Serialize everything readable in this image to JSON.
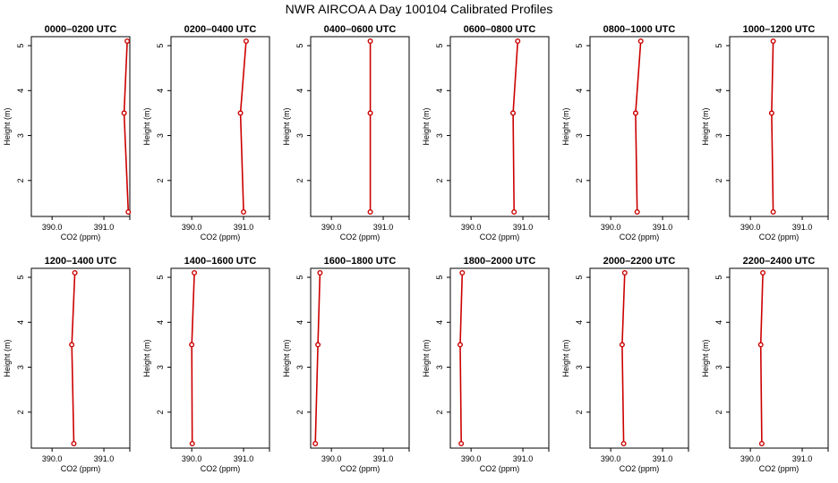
{
  "title": "NWR AIRCOA A  Day 100104  Calibrated Profiles",
  "colors": {
    "line": "#cc0000",
    "point": "#cc0000",
    "frame": "#000000"
  },
  "chart_data": {
    "type": "line",
    "xlabel": "CO2 (ppm)",
    "ylabel": "Height (m)",
    "xlim": [
      389.6,
      391.5
    ],
    "ylim": [
      1.2,
      5.2
    ],
    "xticks": [
      "390.0",
      "391.0"
    ],
    "yticks": [
      "2",
      "3",
      "4",
      "5"
    ],
    "grid": false,
    "panels": [
      {
        "title": "0000–0200 UTC",
        "points": [
          {
            "x": 391.45,
            "y": 5.1
          },
          {
            "x": 391.39,
            "y": 3.5
          },
          {
            "x": 391.47,
            "y": 1.3
          }
        ]
      },
      {
        "title": "0200–0400 UTC",
        "points": [
          {
            "x": 391.05,
            "y": 5.1
          },
          {
            "x": 390.94,
            "y": 3.5
          },
          {
            "x": 391.0,
            "y": 1.3
          }
        ]
      },
      {
        "title": "0400–0600 UTC",
        "points": [
          {
            "x": 390.75,
            "y": 5.1
          },
          {
            "x": 390.75,
            "y": 3.5
          },
          {
            "x": 390.75,
            "y": 1.3
          }
        ]
      },
      {
        "title": "0600–0800 UTC",
        "points": [
          {
            "x": 390.9,
            "y": 5.1
          },
          {
            "x": 390.81,
            "y": 3.5
          },
          {
            "x": 390.83,
            "y": 1.3
          }
        ]
      },
      {
        "title": "0800–1000 UTC",
        "points": [
          {
            "x": 390.58,
            "y": 5.1
          },
          {
            "x": 390.48,
            "y": 3.5
          },
          {
            "x": 390.51,
            "y": 1.3
          }
        ]
      },
      {
        "title": "1000–1200 UTC",
        "points": [
          {
            "x": 390.44,
            "y": 5.1
          },
          {
            "x": 390.41,
            "y": 3.5
          },
          {
            "x": 390.44,
            "y": 1.3
          }
        ]
      },
      {
        "title": "1200–1400 UTC",
        "points": [
          {
            "x": 390.44,
            "y": 5.1
          },
          {
            "x": 390.38,
            "y": 3.5
          },
          {
            "x": 390.42,
            "y": 1.3
          }
        ]
      },
      {
        "title": "1400–1600 UTC",
        "points": [
          {
            "x": 390.05,
            "y": 5.1
          },
          {
            "x": 390.0,
            "y": 3.5
          },
          {
            "x": 390.01,
            "y": 1.3
          }
        ]
      },
      {
        "title": "1600–1800 UTC",
        "points": [
          {
            "x": 389.78,
            "y": 5.1
          },
          {
            "x": 389.74,
            "y": 3.5
          },
          {
            "x": 389.69,
            "y": 1.3
          }
        ]
      },
      {
        "title": "1800–2000 UTC",
        "points": [
          {
            "x": 389.83,
            "y": 5.1
          },
          {
            "x": 389.79,
            "y": 3.5
          },
          {
            "x": 389.81,
            "y": 1.3
          }
        ]
      },
      {
        "title": "2000–2200 UTC",
        "points": [
          {
            "x": 390.27,
            "y": 5.1
          },
          {
            "x": 390.22,
            "y": 3.5
          },
          {
            "x": 390.25,
            "y": 1.3
          }
        ]
      },
      {
        "title": "2200–2400 UTC",
        "points": [
          {
            "x": 390.24,
            "y": 5.1
          },
          {
            "x": 390.2,
            "y": 3.5
          },
          {
            "x": 390.22,
            "y": 1.3
          }
        ]
      }
    ]
  }
}
